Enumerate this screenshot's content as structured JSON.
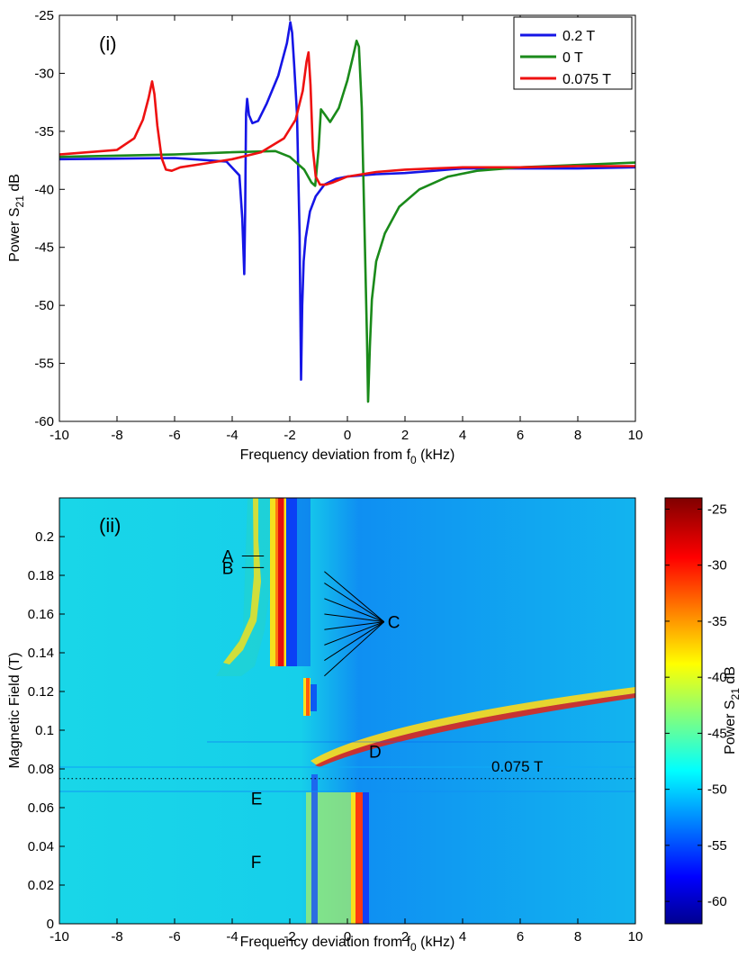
{
  "chart_data": [
    {
      "type": "line",
      "panel_label": "(i)",
      "xlabel": "Frequency deviation from f",
      "xlabel_sub": "0",
      "xlabel_tail": " (kHz)",
      "ylabel": "Power S",
      "ylabel_sub": "21",
      "ylabel_tail": " dB",
      "xlim": [
        -10,
        10
      ],
      "ylim": [
        -60,
        -25
      ],
      "xticks": [
        -10,
        -8,
        -6,
        -4,
        -2,
        0,
        2,
        4,
        6,
        8,
        10
      ],
      "yticks": [
        -25,
        -30,
        -35,
        -40,
        -45,
        -50,
        -55,
        -60
      ],
      "legend_position": "top-right",
      "series": [
        {
          "name": "0.2 T",
          "color": "#1515e6",
          "x": [
            -10,
            -6,
            -4.2,
            -3.75,
            -3.65,
            -3.58,
            -3.55,
            -3.52,
            -3.48,
            -3.42,
            -3.3,
            -3.1,
            -2.8,
            -2.4,
            -2.1,
            -1.98,
            -1.92,
            -1.85,
            -1.75,
            -1.66,
            -1.61,
            -1.57,
            -1.52,
            -1.45,
            -1.3,
            -1.1,
            -0.8,
            -0.4,
            0,
            1,
            2,
            3,
            4,
            6,
            8,
            10
          ],
          "y": [
            -37.4,
            -37.3,
            -37.6,
            -38.8,
            -42.5,
            -47.3,
            -42,
            -33.5,
            -32.2,
            -33.6,
            -34.3,
            -34.1,
            -32.6,
            -30.2,
            -27.4,
            -25.6,
            -26.5,
            -29.2,
            -33.5,
            -44,
            -56.4,
            -50,
            -46.2,
            -44.2,
            -41.9,
            -40.6,
            -39.6,
            -39.1,
            -38.9,
            -38.7,
            -38.6,
            -38.4,
            -38.2,
            -38.2,
            -38.2,
            -38.1
          ]
        },
        {
          "name": "0 T",
          "color": "#1a8a1a",
          "x": [
            -10,
            -6,
            -4,
            -2.5,
            -2,
            -1.5,
            -1.25,
            -1.12,
            -1,
            -0.92,
            -0.8,
            -0.6,
            -0.3,
            0,
            0.2,
            0.32,
            0.4,
            0.5,
            0.6,
            0.68,
            0.72,
            0.78,
            0.85,
            1,
            1.3,
            1.8,
            2.5,
            3.5,
            4.5,
            6,
            8,
            10
          ],
          "y": [
            -37.2,
            -37,
            -36.8,
            -36.7,
            -37.2,
            -38.3,
            -39.4,
            -39.7,
            -36.5,
            -33.1,
            -33.5,
            -34.2,
            -33,
            -30.6,
            -28.5,
            -27.2,
            -27.7,
            -33,
            -44,
            -53,
            -58.3,
            -53.5,
            -49.5,
            -46.2,
            -43.8,
            -41.5,
            -40,
            -38.9,
            -38.4,
            -38.1,
            -37.9,
            -37.7
          ]
        },
        {
          "name": "0.075 T",
          "color": "#ee1111",
          "x": [
            -10,
            -8,
            -7.4,
            -7.1,
            -6.9,
            -6.78,
            -6.7,
            -6.6,
            -6.45,
            -6.3,
            -6.1,
            -5.8,
            -5,
            -4,
            -3,
            -2.2,
            -1.8,
            -1.55,
            -1.42,
            -1.35,
            -1.28,
            -1.2,
            -1.1,
            -0.95,
            -0.75,
            -0.5,
            0,
            1,
            2,
            3,
            4,
            6,
            8,
            10
          ],
          "y": [
            -37,
            -36.6,
            -35.6,
            -34,
            -32.1,
            -30.7,
            -31.8,
            -34.5,
            -37.3,
            -38.3,
            -38.4,
            -38.1,
            -37.8,
            -37.4,
            -36.8,
            -35.6,
            -34,
            -31.5,
            -29,
            -28.2,
            -31,
            -36.5,
            -38.9,
            -39.6,
            -39.6,
            -39.4,
            -38.9,
            -38.5,
            -38.3,
            -38.2,
            -38.1,
            -38.1,
            -38,
            -38
          ]
        }
      ]
    },
    {
      "type": "heatmap",
      "panel_label": "(ii)",
      "xlabel": "Frequency deviation from f",
      "xlabel_sub": "0",
      "xlabel_tail": " (kHz)",
      "ylabel": "Magnetic Field (T)",
      "xlim": [
        -10,
        10
      ],
      "ylim": [
        0,
        0.22
      ],
      "xticks": [
        -10,
        -8,
        -6,
        -4,
        -2,
        0,
        2,
        4,
        6,
        8,
        10
      ],
      "yticks": [
        0,
        0.02,
        0.04,
        0.06,
        0.08,
        0.1,
        0.12,
        0.14,
        0.16,
        0.18,
        0.2
      ],
      "colorbar": {
        "label": "Power S",
        "label_sub": "21",
        "label_tail": " dB",
        "range": [
          -62,
          -24
        ],
        "ticks": [
          -25,
          -30,
          -35,
          -40,
          -45,
          -50,
          -55,
          -60
        ],
        "colormap": "jet"
      },
      "dotted_line": {
        "field": 0.075,
        "label": "0.075 T"
      },
      "annotations": [
        {
          "label": "A",
          "x": -3.6,
          "y": 0.19
        },
        {
          "label": "B",
          "x": -3.6,
          "y": 0.184
        },
        {
          "label": "C",
          "x": 1.4,
          "y": 0.156
        },
        {
          "label": "D",
          "x": 1.5,
          "y": 0.089
        },
        {
          "label": "E",
          "x": -2.6,
          "y": 0.065
        },
        {
          "label": "F",
          "x": -2.6,
          "y": 0.032
        }
      ],
      "annotation_C_targets": [
        {
          "x": -0.8,
          "y": 0.182
        },
        {
          "x": -0.8,
          "y": 0.176
        },
        {
          "x": -0.8,
          "y": 0.168
        },
        {
          "x": -0.8,
          "y": 0.16
        },
        {
          "x": -0.8,
          "y": 0.152
        },
        {
          "x": -0.8,
          "y": 0.144
        },
        {
          "x": -0.8,
          "y": 0.136
        },
        {
          "x": -0.8,
          "y": 0.128
        }
      ]
    }
  ]
}
